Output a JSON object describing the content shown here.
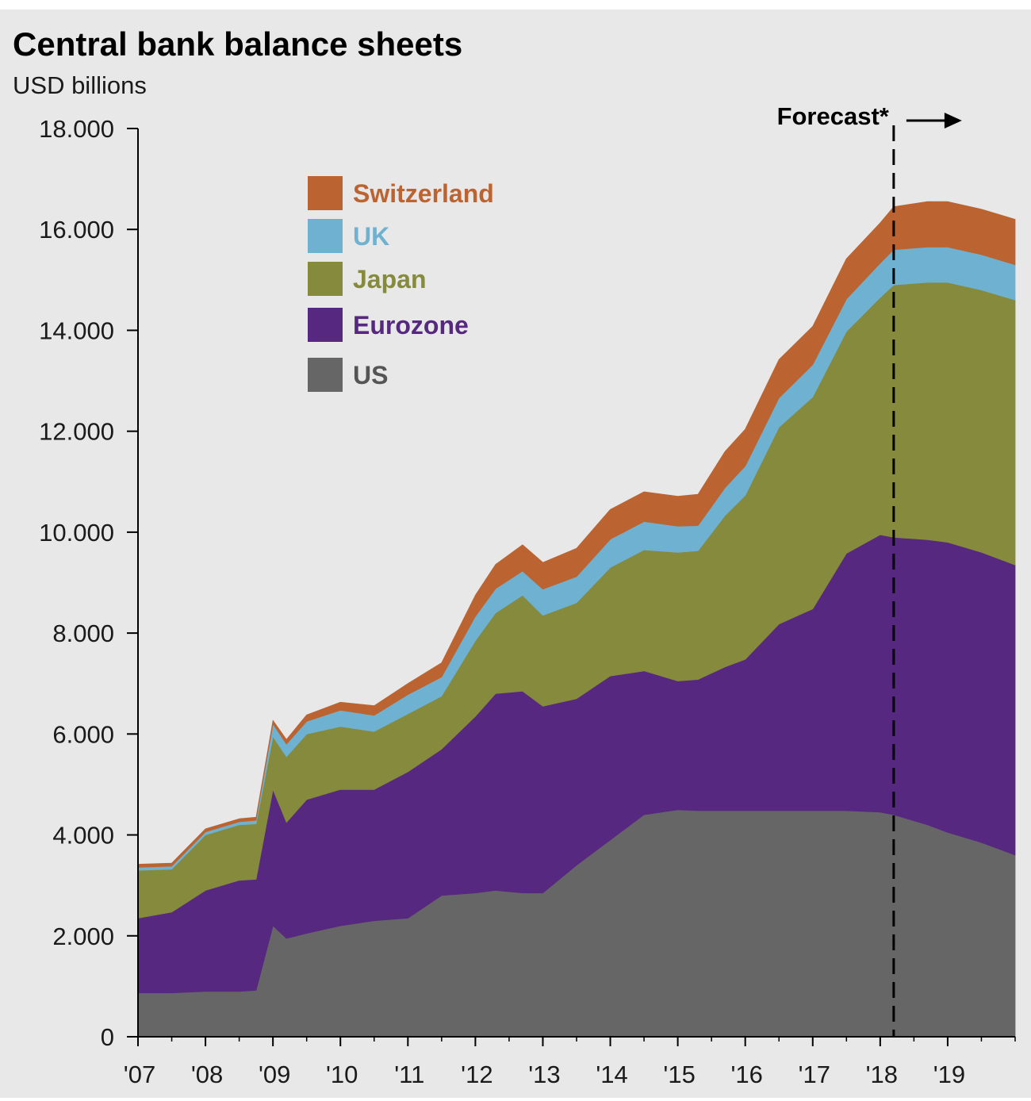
{
  "chart_data": {
    "type": "area",
    "stacked": true,
    "title": "Central bank balance sheets",
    "subtitle": "USD billions",
    "xlabel": "",
    "ylabel": "USD billions",
    "ylim": [
      0,
      18000
    ],
    "xlim": [
      2007.0,
      2020.0
    ],
    "y_ticks": [
      0,
      2000,
      4000,
      6000,
      8000,
      10000,
      12000,
      14000,
      16000,
      18000
    ],
    "y_tick_labels": [
      "0",
      "2.000",
      "4.000",
      "6.000",
      "8.000",
      "10.000",
      "12.000",
      "14.000",
      "16.000",
      "18.000"
    ],
    "x_ticks": [
      2007,
      2008,
      2009,
      2010,
      2011,
      2012,
      2013,
      2014,
      2015,
      2016,
      2017,
      2018,
      2019
    ],
    "x_tick_labels": [
      "'07",
      "'08",
      "'09",
      "'10",
      "'11",
      "'12",
      "'13",
      "'14",
      "'15",
      "'16",
      "'17",
      "'18",
      "'19"
    ],
    "forecast": {
      "label": "Forecast*",
      "start_x": 2018.2
    },
    "legend": {
      "position": "top-left",
      "entries": [
        "Switzerland",
        "UK",
        "Japan",
        "Eurozone",
        "US"
      ]
    },
    "x": [
      2007.0,
      2007.5,
      2008.0,
      2008.5,
      2008.75,
      2009.0,
      2009.2,
      2009.5,
      2010.0,
      2010.5,
      2011.0,
      2011.5,
      2012.0,
      2012.3,
      2012.7,
      2013.0,
      2013.5,
      2014.0,
      2014.5,
      2015.0,
      2015.3,
      2015.7,
      2016.0,
      2016.5,
      2017.0,
      2017.5,
      2018.0,
      2018.2,
      2018.7,
      2019.0,
      2019.5,
      2020.0
    ],
    "series": [
      {
        "name": "US",
        "color": "#666666",
        "values": [
          870,
          870,
          900,
          900,
          920,
          2200,
          1950,
          2050,
          2200,
          2300,
          2350,
          2800,
          2850,
          2900,
          2850,
          2850,
          3400,
          3900,
          4400,
          4500,
          4480,
          4480,
          4480,
          4480,
          4480,
          4480,
          4450,
          4400,
          4200,
          4050,
          3850,
          3600
        ]
      },
      {
        "name": "Eurozone",
        "color": "#57287f",
        "values": [
          1480,
          1600,
          2000,
          2200,
          2200,
          2700,
          2300,
          2650,
          2700,
          2600,
          2900,
          2900,
          3500,
          3900,
          4000,
          3700,
          3300,
          3250,
          2850,
          2550,
          2600,
          2850,
          3000,
          3700,
          4000,
          5100,
          5500,
          5500,
          5650,
          5750,
          5750,
          5750
        ]
      },
      {
        "name": "Japan",
        "color": "#858a3c",
        "values": [
          950,
          850,
          1100,
          1100,
          1100,
          1050,
          1300,
          1300,
          1250,
          1150,
          1150,
          1050,
          1500,
          1600,
          1900,
          1800,
          1900,
          2150,
          2400,
          2550,
          2550,
          3000,
          3250,
          3900,
          4200,
          4400,
          4700,
          5000,
          5100,
          5150,
          5200,
          5250
        ]
      },
      {
        "name": "UK",
        "color": "#6fb1d0",
        "values": [
          60,
          60,
          60,
          60,
          70,
          250,
          250,
          250,
          320,
          320,
          380,
          380,
          480,
          480,
          480,
          520,
          520,
          560,
          560,
          520,
          500,
          550,
          580,
          580,
          640,
          640,
          680,
          700,
          700,
          700,
          700,
          700
        ]
      },
      {
        "name": "Switzerland",
        "color": "#bb6431",
        "values": [
          60,
          60,
          60,
          60,
          60,
          70,
          90,
          130,
          160,
          190,
          220,
          280,
          420,
          480,
          520,
          530,
          560,
          590,
          590,
          590,
          620,
          720,
          730,
          760,
          760,
          800,
          800,
          850,
          900,
          900,
          900,
          900
        ]
      }
    ]
  }
}
